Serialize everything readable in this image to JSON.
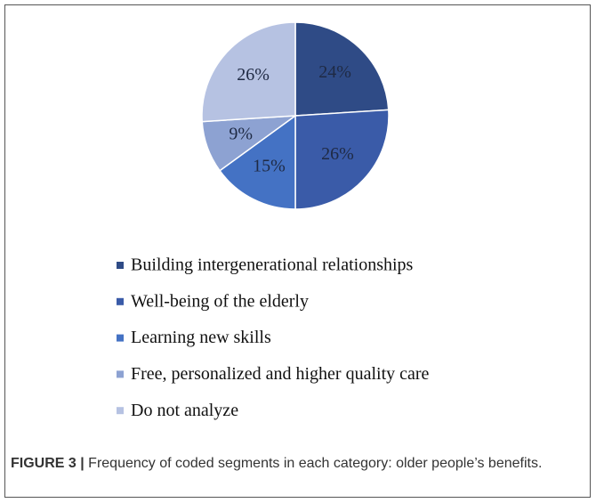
{
  "chart_data": {
    "type": "pie",
    "categories": [
      "Building intergenerational relationships",
      "Well-being of the elderly",
      "Learning new skills",
      "Free, personalized and higher quality care",
      "Do not analyze"
    ],
    "values": [
      24,
      26,
      15,
      9,
      26
    ],
    "value_labels": [
      "24%",
      "26%",
      "15%",
      "9%",
      "26%"
    ],
    "colors": [
      "#2f4b86",
      "#3a5ba8",
      "#4472c4",
      "#8da2d2",
      "#b6c2e2"
    ]
  },
  "caption": {
    "label": "FIGURE 3 |",
    "text": "Frequency of coded segments in each category: older people’s benefits."
  }
}
